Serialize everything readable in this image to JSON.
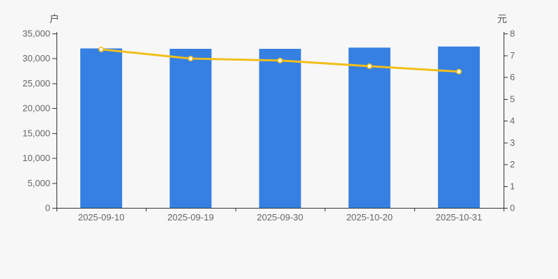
{
  "chart_data": {
    "type": "bar",
    "subtype": "dual-axis-bar-line",
    "title": "",
    "categories": [
      "2025-09-10",
      "2025-09-19",
      "2025-09-30",
      "2025-10-20",
      "2025-10-31"
    ],
    "series": [
      {
        "name": "shareholder-count",
        "type": "bar",
        "axis": "left",
        "unit": "户",
        "values": [
          32000,
          31920,
          31920,
          32160,
          32380
        ],
        "color": "#3580e2"
      },
      {
        "name": "value-line",
        "type": "line",
        "axis": "right",
        "unit": "元",
        "values": [
          7.27,
          6.85,
          6.76,
          6.5,
          6.25
        ],
        "color": "#f2be1c",
        "marker": "empty-circle",
        "marker_fill": "#ffffff"
      }
    ],
    "left_axis": {
      "label": "户",
      "min": 0,
      "max": 35000,
      "step": 5000,
      "ticks": [
        "0",
        "5,000",
        "10,000",
        "15,000",
        "20,000",
        "25,000",
        "30,000",
        "35,000"
      ]
    },
    "right_axis": {
      "label": "元",
      "min": 0,
      "max": 8,
      "step": 1,
      "ticks": [
        "0",
        "1",
        "2",
        "3",
        "4",
        "5",
        "6",
        "7",
        "8"
      ]
    },
    "grid": false,
    "legend": false
  },
  "colors": {
    "background": "#f7f7f7",
    "bar": "#3580e2",
    "line": "#f2be1c",
    "marker_fill": "#ffffff",
    "axis_line": "#333333",
    "tick_text": "#666666",
    "axis_name_text": "#555555"
  }
}
